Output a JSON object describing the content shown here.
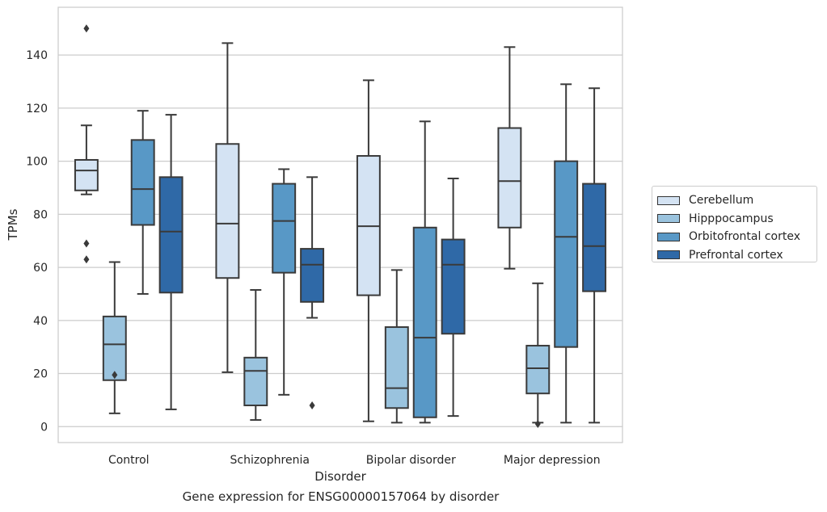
{
  "caption": "Gene expression for ENSG00000157064 by disorder",
  "chart_data": {
    "type": "box",
    "xlabel": "Disorder",
    "ylabel": "TPMs",
    "ylim": [
      -6,
      158
    ],
    "yticks": [
      0,
      20,
      40,
      60,
      80,
      100,
      120,
      140
    ],
    "categories": [
      "Control",
      "Schizophrenia",
      "Bipolar disorder",
      "Major depression"
    ],
    "grid": "horizontal",
    "legend_position": "right",
    "series": [
      {
        "name": "Cerebellum",
        "color": "#d4e3f3",
        "boxes": [
          {
            "whisker_low": 87.5,
            "q1": 89,
            "median": 96.5,
            "q3": 100.5,
            "whisker_high": 113.5,
            "outliers": [
              150,
              69,
              63
            ]
          },
          {
            "whisker_low": 20.5,
            "q1": 56,
            "median": 76.5,
            "q3": 106.5,
            "whisker_high": 144.5,
            "outliers": []
          },
          {
            "whisker_low": 2,
            "q1": 49.5,
            "median": 75.5,
            "q3": 102,
            "whisker_high": 130.5,
            "outliers": []
          },
          {
            "whisker_low": 59.5,
            "q1": 75,
            "median": 92.5,
            "q3": 112.5,
            "whisker_high": 143,
            "outliers": []
          }
        ]
      },
      {
        "name": "Hipppocampus",
        "color": "#9ac3de",
        "boxes": [
          {
            "whisker_low": 5,
            "q1": 17.5,
            "median": 31,
            "q3": 41.5,
            "whisker_high": 62,
            "outliers": [
              19.5
            ]
          },
          {
            "whisker_low": 2.5,
            "q1": 8,
            "median": 21,
            "q3": 26,
            "whisker_high": 51.5,
            "outliers": []
          },
          {
            "whisker_low": 1.5,
            "q1": 7,
            "median": 14.5,
            "q3": 37.5,
            "whisker_high": 59,
            "outliers": []
          },
          {
            "whisker_low": 1.5,
            "q1": 12.5,
            "median": 22,
            "q3": 30.5,
            "whisker_high": 54,
            "outliers": [
              1
            ]
          }
        ]
      },
      {
        "name": "Orbitofrontal cortex",
        "color": "#5898c6",
        "boxes": [
          {
            "whisker_low": 50,
            "q1": 76,
            "median": 89.5,
            "q3": 108,
            "whisker_high": 119,
            "outliers": []
          },
          {
            "whisker_low": 12,
            "q1": 58,
            "median": 77.5,
            "q3": 91.5,
            "whisker_high": 97,
            "outliers": []
          },
          {
            "whisker_low": 1.5,
            "q1": 3.5,
            "median": 33.5,
            "q3": 75,
            "whisker_high": 115,
            "outliers": []
          },
          {
            "whisker_low": 1.5,
            "q1": 30,
            "median": 71.5,
            "q3": 100,
            "whisker_high": 129,
            "outliers": []
          }
        ]
      },
      {
        "name": "Prefrontal cortex",
        "color": "#2f69a7",
        "boxes": [
          {
            "whisker_low": 6.5,
            "q1": 50.5,
            "median": 73.5,
            "q3": 94,
            "whisker_high": 117.5,
            "outliers": []
          },
          {
            "whisker_low": 41,
            "q1": 47,
            "median": 61,
            "q3": 67,
            "whisker_high": 94,
            "outliers": [
              8
            ]
          },
          {
            "whisker_low": 4,
            "q1": 35,
            "median": 61,
            "q3": 70.5,
            "whisker_high": 93.5,
            "outliers": []
          },
          {
            "whisker_low": 1.5,
            "q1": 51,
            "median": 68,
            "q3": 91.5,
            "whisker_high": 127.5,
            "outliers": []
          }
        ]
      }
    ]
  }
}
